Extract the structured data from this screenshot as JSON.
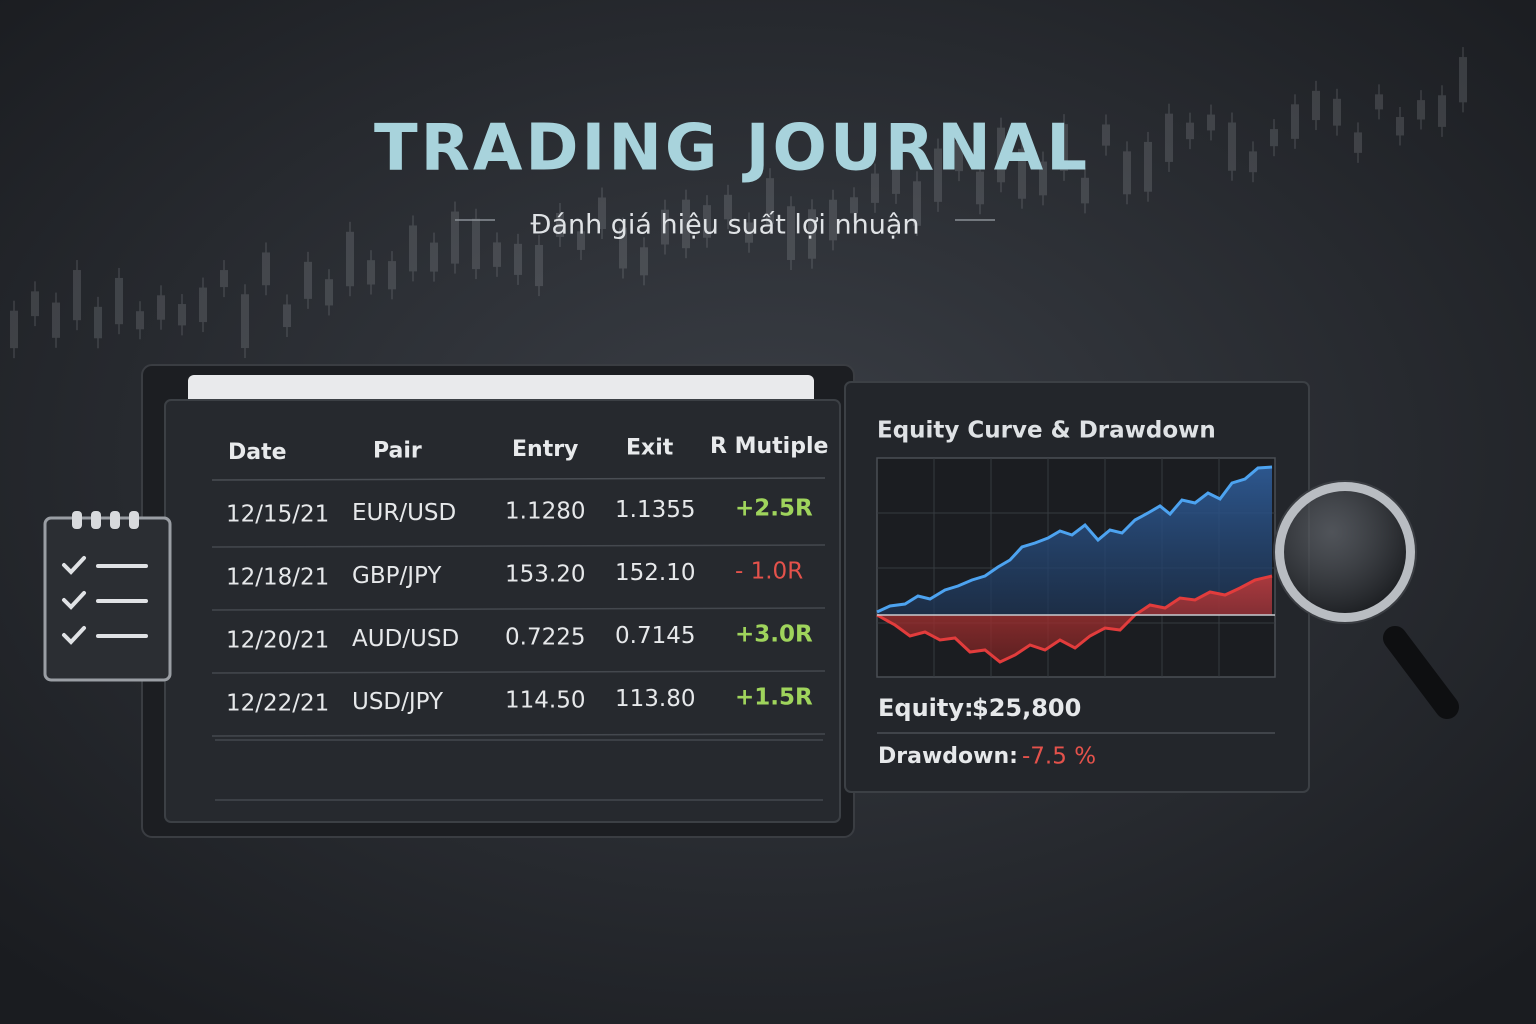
{
  "header": {
    "title": "TRADING JOURNAL",
    "subtitle": "Đánh giá hiệu suất lợi nhuận"
  },
  "table": {
    "columns": [
      "Date",
      "Pair",
      "Entry",
      "Exit",
      "R Mutiple"
    ],
    "rows": [
      [
        "12/15/21",
        "EUR/USD",
        "1.1280",
        "1.1355",
        "+2.5R"
      ],
      [
        "12/18/21",
        "GBP/JPY",
        "153.20",
        "152.10",
        "- 1.0R"
      ],
      [
        "12/20/21",
        "AUD/USD",
        "0.7225",
        "0.7145",
        "+3.0R"
      ],
      [
        "12/22/21",
        "USD/JPY",
        "114.50",
        "113.80",
        "+1.5R"
      ]
    ]
  },
  "panel": {
    "title": "Equity Curve & Drawdown",
    "equity_label": "Equity:",
    "equity_value": "$25,800",
    "drawdown_label": "Drawdown:",
    "drawdown_value": "-7.5 %"
  }
}
